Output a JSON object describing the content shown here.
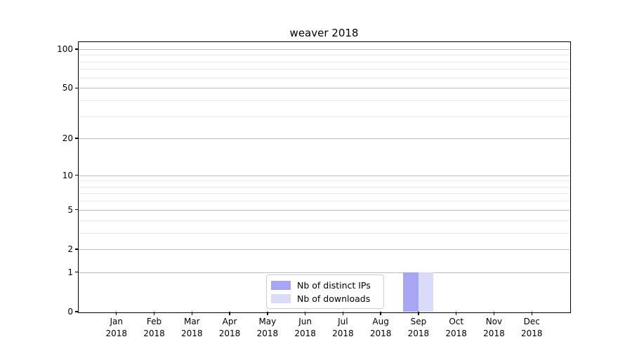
{
  "chart_data": {
    "type": "bar",
    "title": "weaver 2018",
    "year_label": "2018",
    "categories": [
      "Jan",
      "Feb",
      "Mar",
      "Apr",
      "May",
      "Jun",
      "Jul",
      "Aug",
      "Sep",
      "Oct",
      "Nov",
      "Dec"
    ],
    "series": [
      {
        "name": "Nb of distinct IPs",
        "color": "#a6a6f2",
        "values": [
          0,
          0,
          0,
          0,
          0,
          0,
          0,
          0,
          1,
          0,
          0,
          0
        ]
      },
      {
        "name": "Nb of downloads",
        "color": "#dadaf9",
        "values": [
          0,
          0,
          0,
          0,
          0,
          0,
          0,
          0,
          1,
          0,
          0,
          0
        ]
      }
    ],
    "yticks": [
      0,
      1,
      2,
      5,
      10,
      20,
      50,
      100
    ],
    "yticks_minor": [
      3,
      4,
      6,
      7,
      8,
      9,
      30,
      40,
      60,
      70,
      80,
      90
    ],
    "ylim": [
      0,
      113
    ],
    "yscale": "log1p",
    "xlabel": "",
    "ylabel": "",
    "grid": "horizontal",
    "legend_position": "lower-center",
    "colors": {
      "grid_major": "#bdbdbd",
      "grid_minor": "#e8e8e8",
      "spine": "#000000",
      "background": "#ffffff",
      "text": "#000000"
    }
  }
}
